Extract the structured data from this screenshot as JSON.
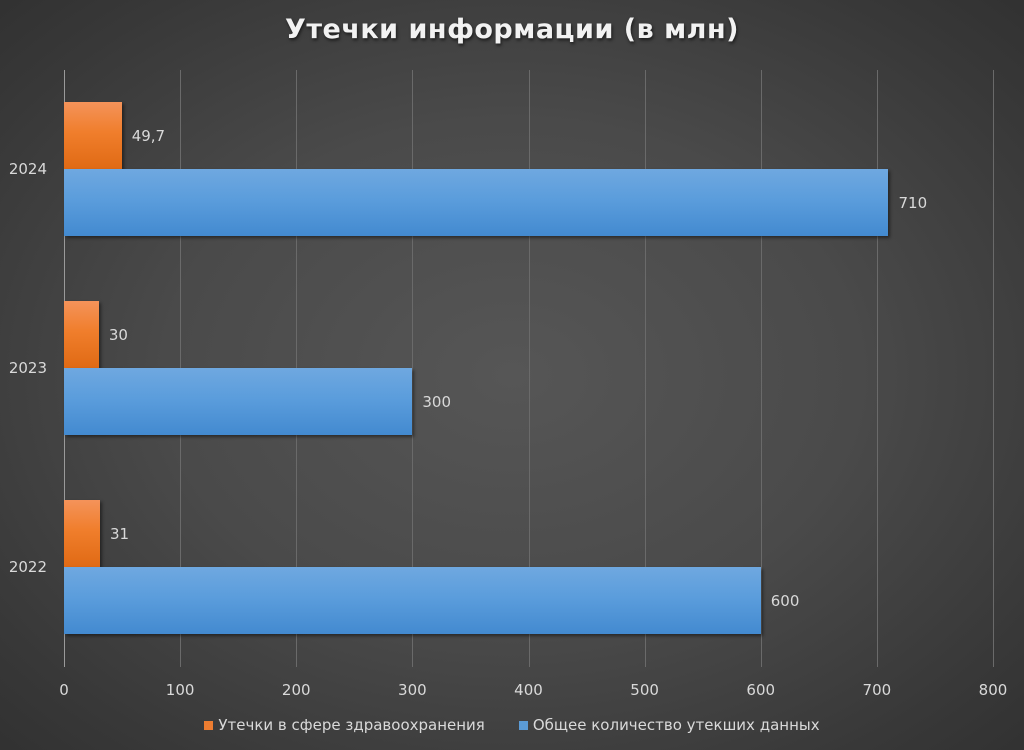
{
  "chart_data": {
    "type": "bar",
    "orientation": "horizontal",
    "title": "Утечки информации (в млн)",
    "categories": [
      "2024",
      "2023",
      "2022"
    ],
    "series": [
      {
        "name": "Утечки в сфере здравоохранения",
        "color": "#ed7d31",
        "values": [
          49.7,
          30,
          31
        ],
        "labels": [
          "49,7",
          "30",
          "31"
        ]
      },
      {
        "name": "Общее количество утекших данных",
        "color": "#5b9bd5",
        "values": [
          710,
          300,
          600
        ],
        "labels": [
          "710",
          "300",
          "600"
        ]
      }
    ],
    "xlabel": "",
    "ylabel": "",
    "xlim": [
      0,
      800
    ],
    "x_ticks": [
      "0",
      "100",
      "200",
      "300",
      "400",
      "500",
      "600",
      "700",
      "800"
    ],
    "grid": "vertical",
    "legend_position": "bottom"
  },
  "title": "Утечки информации (в млн)",
  "legend": [
    {
      "label": "Утечки в сфере здравоохранения",
      "color": "#ed7d31"
    },
    {
      "label": "Общее количество утекших данных",
      "color": "#5b9bd5"
    }
  ]
}
